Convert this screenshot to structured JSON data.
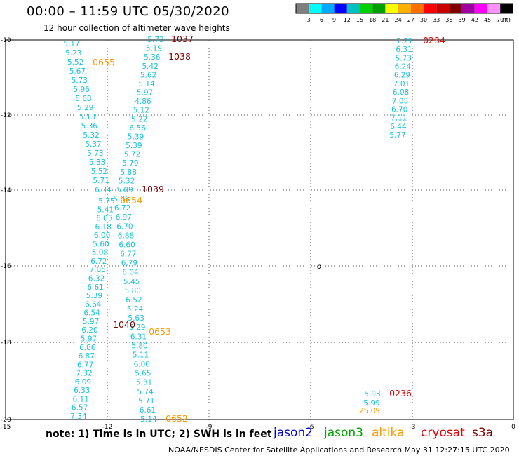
{
  "header": {
    "title": "00:00 – 11:59 UTC 05/30/2020",
    "subtitle": "12 hour collection of altimeter wave heights"
  },
  "colorbar": {
    "labels": [
      "3",
      "6",
      "9",
      "12",
      "15",
      "18",
      "21",
      "24",
      "27",
      "30",
      "33",
      "36",
      "39",
      "42",
      "45",
      "70"
    ],
    "unit": "(ft)",
    "colors": [
      "#7f7f7f",
      "#00ffff",
      "#00aaff",
      "#0000ff",
      "#00c0c0",
      "#00d000",
      "#00a000",
      "#ffff00",
      "#ffb000",
      "#ff7000",
      "#ff0000",
      "#c80000",
      "#800000",
      "#a000a0",
      "#ff00ff",
      "#ff90ff",
      "#000000"
    ]
  },
  "axes": {
    "x_ticks": [
      "-15",
      "-12",
      "-9",
      "-6",
      "-3",
      "0"
    ],
    "y_ticks": [
      "-10",
      "-12",
      "-14",
      "-16",
      "-18",
      "-20"
    ]
  },
  "marker": "o",
  "note": "note: 1) Time is in UTC; 2) SWH is in feet",
  "satellites": [
    {
      "name": "jason2",
      "color": "#0000c8"
    },
    {
      "name": "jason3",
      "color": "#00a000"
    },
    {
      "name": "altika",
      "color": "#ff9900"
    },
    {
      "name": "cryosat",
      "color": "#e00000"
    },
    {
      "name": "s3a",
      "color": "#800000"
    }
  ],
  "footer": "NOAA/NESDIS Center for Satellite Applications and Research    May 31 12:27:15 UTC 2020",
  "swh_color": "#19c3d7",
  "tracks": [
    {
      "values": [
        "5.17",
        "5.23",
        "5.52",
        "5.67",
        "5.73",
        "5.96",
        "5.68",
        "5.29",
        "5.13",
        "5.36",
        "5.32",
        "5.37",
        "5.73",
        "5.83",
        "5.52",
        "5.71",
        "6.34"
      ]
    },
    {
      "values": [
        "5.75",
        "5.41",
        "6.05",
        "6.18",
        "6.00",
        "5.60",
        "5.08",
        "6.72",
        "7.05",
        "6.32",
        "6.61",
        "5.39",
        "6.64",
        "6.54",
        "5.97",
        "6.20",
        "5.97",
        "6.86",
        "6.87",
        "6.77",
        "7.32",
        "6.09",
        "6.33",
        "6.11",
        "6.57",
        "7.34"
      ]
    },
    {
      "values": [
        "5.73",
        "5.19",
        "5.36",
        "5.42",
        "5.62",
        "5.14",
        "5.97",
        "4.86",
        "5.12",
        "5.22",
        "6.56",
        "5.39",
        "5.39",
        "5.72",
        "5.79",
        "5.88",
        "5.32",
        "5.09"
      ]
    },
    {
      "values": [
        "5.06",
        "6.72",
        "6.97",
        "6.70",
        "6.88",
        "6.60",
        "6.77",
        "6.79",
        "6.04",
        "5.45",
        "5.80",
        "6.52",
        "5.24",
        "5.63",
        "5.29",
        "6.31",
        "5.80",
        "5.11",
        "6.00",
        "5.65",
        "5.31",
        "5.74",
        "5.71",
        "6.61",
        "5.14"
      ]
    },
    {
      "values": [
        "7.21",
        "6.31",
        "5.73",
        "6.24",
        "6.29",
        "7.01",
        "6.08",
        "7.05",
        "6.70",
        "7.11",
        "6.44",
        "5.77"
      ]
    },
    {
      "values": [
        "5.93",
        "5.99"
      ]
    }
  ],
  "other_values": {
    "altika_value": "25.09"
  },
  "times": [
    {
      "label": "1037",
      "color": "#800000"
    },
    {
      "label": "1038",
      "color": "#800000"
    },
    {
      "label": "0655",
      "color": "#ff9900"
    },
    {
      "label": "1039",
      "color": "#800000"
    },
    {
      "label": "0654",
      "color": "#ff9900"
    },
    {
      "label": "1040",
      "color": "#800000"
    },
    {
      "label": "0653",
      "color": "#ff9900"
    },
    {
      "label": "0652",
      "color": "#ff9900"
    },
    {
      "label": "0234",
      "color": "#e00000"
    },
    {
      "label": "0236",
      "color": "#e00000"
    }
  ]
}
